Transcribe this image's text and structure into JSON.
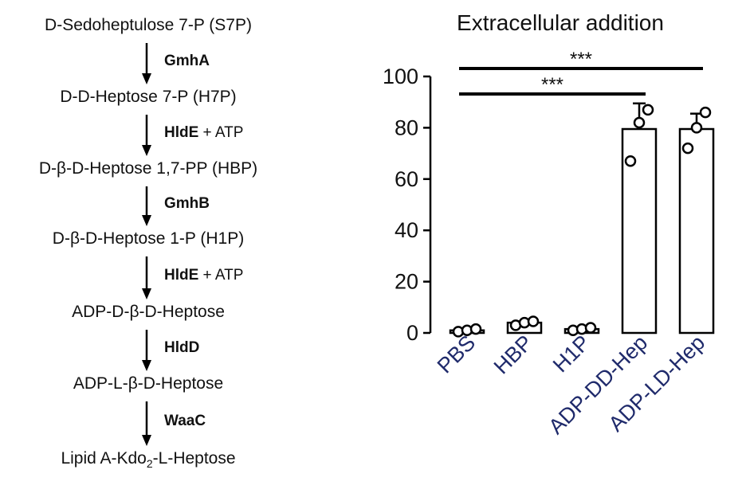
{
  "pathway": {
    "steps": [
      {
        "metabolite": "D-Sedoheptulose 7-P (S7P)",
        "enzyme": "GmhA",
        "cofactor": ""
      },
      {
        "metabolite": "D-D-Heptose 7-P (H7P)",
        "enzyme": "HldE",
        "cofactor": " + ATP"
      },
      {
        "metabolite": "D-β-D-Heptose 1,7-PP (HBP)",
        "enzyme": "GmhB",
        "cofactor": ""
      },
      {
        "metabolite": "D-β-D-Heptose 1-P (H1P)",
        "enzyme": "HldE",
        "cofactor": " + ATP"
      },
      {
        "metabolite": "ADP-D-β-D-Heptose",
        "enzyme": "HldD",
        "cofactor": ""
      },
      {
        "metabolite": "ADP-L-β-D-Heptose",
        "enzyme": "WaaC",
        "cofactor": ""
      }
    ],
    "final": {
      "pre": "Lipid A-Kdo",
      "sub": "2",
      "post": "-L-Heptose"
    }
  },
  "chart_data": {
    "type": "bar",
    "title": "Extracellular addition",
    "categories": [
      "PBS",
      "HBP",
      "H1P",
      "ADP-DD-Hep",
      "ADP-LD-Hep"
    ],
    "values": [
      1,
      4,
      1.5,
      79.5,
      79.5
    ],
    "errors": [
      0.3,
      0.5,
      0.5,
      10,
      6
    ],
    "points": [
      [
        0.5,
        1,
        1.5
      ],
      [
        3,
        4,
        4.5
      ],
      [
        1,
        1.5,
        2
      ],
      [
        67,
        82,
        87
      ],
      [
        72,
        80,
        86
      ]
    ],
    "ylim": [
      0,
      100
    ],
    "yticks": [
      0,
      20,
      40,
      60,
      80,
      100
    ],
    "xlabel": "",
    "ylabel": "",
    "significance": [
      {
        "from": 0,
        "to": 3,
        "label": "***"
      },
      {
        "from": 0,
        "to": 4,
        "label": "***"
      }
    ],
    "colors": {
      "bar_fill": "#ffffff",
      "stroke": "#000000",
      "tick_label": "#1f2a6b",
      "text": "#111111"
    }
  }
}
